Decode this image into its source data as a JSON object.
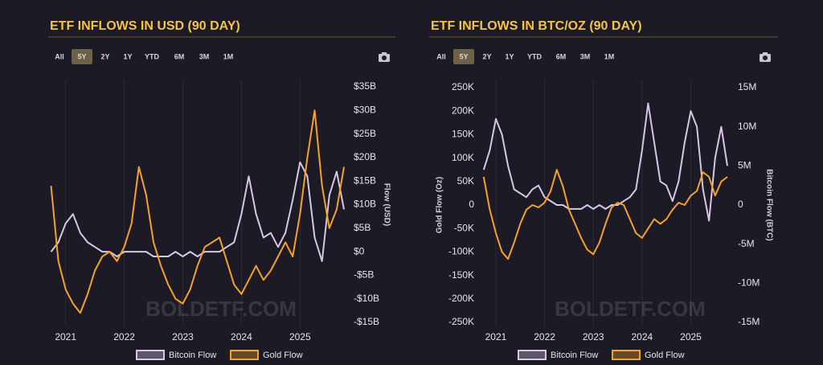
{
  "chart_data": [
    {
      "type": "line",
      "title": "ETF INFLOWS IN USD (90 DAY)",
      "range_buttons": [
        "All",
        "5Y",
        "2Y",
        "1Y",
        "YTD",
        "6M",
        "3M",
        "1M"
      ],
      "selected_range": "5Y",
      "watermark": "BOLDETF.COM",
      "ylabel": "Flow (USD)",
      "y_axis_side": "right",
      "grid": "x",
      "x": [
        2020.75,
        2020.875,
        2021,
        2021.125,
        2021.25,
        2021.375,
        2021.5,
        2021.625,
        2021.75,
        2021.875,
        2022,
        2022.125,
        2022.25,
        2022.375,
        2022.5,
        2022.625,
        2022.75,
        2022.875,
        2023,
        2023.125,
        2023.25,
        2023.375,
        2023.5,
        2023.625,
        2023.75,
        2023.875,
        2024,
        2024.125,
        2024.25,
        2024.375,
        2024.5,
        2024.625,
        2024.75,
        2024.875,
        2025,
        2025.125,
        2025.25,
        2025.375,
        2025.5,
        2025.625,
        2025.75
      ],
      "xlim": [
        2020.73,
        2025.75
      ],
      "xticks": [
        2021,
        2022,
        2023,
        2024,
        2025
      ],
      "ylim": [
        -15,
        35
      ],
      "yticks": [
        {
          "value": 35,
          "label": "$35B"
        },
        {
          "value": 30,
          "label": "$30B"
        },
        {
          "value": 25,
          "label": "$25B"
        },
        {
          "value": 20,
          "label": "$20B"
        },
        {
          "value": 15,
          "label": "$15B"
        },
        {
          "value": 10,
          "label": "$10B"
        },
        {
          "value": 5,
          "label": "$5B"
        },
        {
          "value": 0,
          "label": "$0"
        },
        {
          "value": -5,
          "label": "-$5B"
        },
        {
          "value": -10,
          "label": "-$10B"
        },
        {
          "value": -15,
          "label": "-$15B"
        }
      ],
      "series": [
        {
          "name": "Bitcoin Flow",
          "color": "#d9c6e6",
          "axis": "y",
          "values": [
            0,
            2,
            6,
            8,
            4,
            2,
            1,
            0,
            0,
            -1,
            0,
            0,
            0,
            0,
            -1,
            -1,
            -1,
            0,
            -1,
            0,
            -1,
            0,
            0,
            0,
            1,
            2,
            8,
            16,
            8,
            3,
            4,
            1,
            4,
            11,
            19,
            16,
            3,
            -2,
            12,
            17,
            9
          ]
        },
        {
          "name": "Gold Flow",
          "color": "#f7a12b",
          "axis": "y",
          "values": [
            14,
            -2,
            -8,
            -11,
            -13,
            -9,
            -4,
            -1,
            0,
            -2,
            1,
            6,
            18,
            12,
            2,
            -3,
            -7,
            -10,
            -11,
            -8,
            -3,
            1,
            2,
            3,
            -2,
            -7,
            -9,
            -6,
            -3,
            -6,
            -4,
            -1,
            2,
            -1,
            8,
            20,
            30,
            14,
            5,
            9,
            18
          ]
        }
      ]
    },
    {
      "type": "line",
      "title": "ETF INFLOWS IN BTC/OZ (90 DAY)",
      "range_buttons": [
        "All",
        "5Y",
        "2Y",
        "1Y",
        "YTD",
        "6M",
        "3M",
        "1M"
      ],
      "selected_range": "5Y",
      "watermark": "BOLDETF.COM",
      "ylabel": "Gold Flow (Oz)",
      "y2label": "Bitcoin Flow (BTC)",
      "y_axis_side": "left",
      "grid": "x",
      "x": [
        2020.75,
        2020.875,
        2021,
        2021.125,
        2021.25,
        2021.375,
        2021.5,
        2021.625,
        2021.75,
        2021.875,
        2022,
        2022.125,
        2022.25,
        2022.375,
        2022.5,
        2022.625,
        2022.75,
        2022.875,
        2023,
        2023.125,
        2023.25,
        2023.375,
        2023.5,
        2023.625,
        2023.75,
        2023.875,
        2024,
        2024.125,
        2024.25,
        2024.375,
        2024.5,
        2024.625,
        2024.75,
        2024.875,
        2025,
        2025.125,
        2025.25,
        2025.375,
        2025.5,
        2025.625,
        2025.75
      ],
      "xlim": [
        2020.72,
        2025.8
      ],
      "xticks": [
        2021,
        2022,
        2023,
        2024,
        2025
      ],
      "ylim": [
        -250000,
        250000
      ],
      "yticks": [
        {
          "value": 250000,
          "label": "250K"
        },
        {
          "value": 200000,
          "label": "200K"
        },
        {
          "value": 150000,
          "label": "150K"
        },
        {
          "value": 100000,
          "label": "100K"
        },
        {
          "value": 50000,
          "label": "50K"
        },
        0,
        {
          "value": -50000,
          "label": "-50K"
        },
        {
          "value": -100000,
          "label": "-100K"
        },
        {
          "value": -150000,
          "label": "-150K"
        },
        {
          "value": -200000,
          "label": "-200K"
        },
        {
          "value": -250000,
          "label": "-250K"
        }
      ],
      "y2lim": [
        -15000000,
        15000000
      ],
      "y2ticks": [
        {
          "value": 15000000,
          "label": "15M"
        },
        {
          "value": 10000000,
          "label": "10M"
        },
        {
          "value": 5000000,
          "label": "5M"
        },
        0,
        {
          "value": -5000000,
          "label": "-5M"
        },
        {
          "value": -10000000,
          "label": "-10M"
        },
        {
          "value": -15000000,
          "label": "-15M"
        }
      ],
      "series": [
        {
          "name": "Bitcoin Flow",
          "color": "#d9c6e6",
          "axis": "y2",
          "values": [
            4500000,
            7000000,
            11000000,
            9000000,
            5000000,
            2000000,
            1500000,
            1000000,
            2000000,
            2500000,
            1000000,
            500000,
            0,
            0,
            -500000,
            -500000,
            -500000,
            0,
            -500000,
            0,
            -500000,
            0,
            0,
            500000,
            1000000,
            2000000,
            7000000,
            13000000,
            8000000,
            3000000,
            2500000,
            500000,
            3000000,
            8000000,
            12000000,
            10000000,
            2000000,
            -2000000,
            6000000,
            10000000,
            5000000
          ]
        },
        {
          "name": "Gold Flow",
          "color": "#f7a12b",
          "axis": "y",
          "values": [
            60000,
            -10000,
            -60000,
            -100000,
            -115000,
            -80000,
            -40000,
            -10000,
            0,
            -5000,
            5000,
            30000,
            75000,
            40000,
            -10000,
            -40000,
            -70000,
            -95000,
            -105000,
            -80000,
            -40000,
            -5000,
            5000,
            0,
            -30000,
            -60000,
            -70000,
            -50000,
            -30000,
            -40000,
            -30000,
            -10000,
            5000,
            0,
            20000,
            30000,
            70000,
            60000,
            20000,
            50000,
            60000
          ]
        }
      ]
    }
  ]
}
